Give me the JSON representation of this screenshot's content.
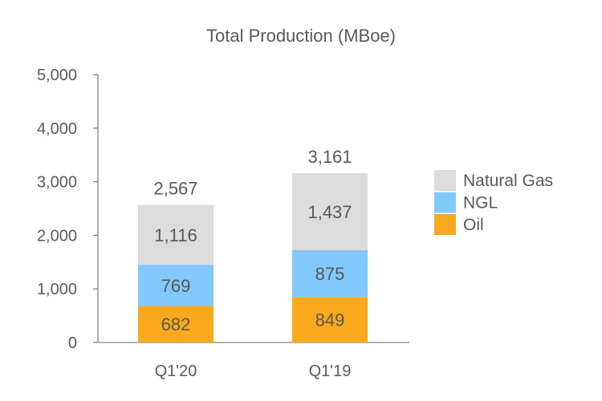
{
  "chart_data": {
    "type": "bar",
    "stacked": true,
    "title": "Total Production (MBoe)",
    "xlabel": "",
    "ylabel": "",
    "ylim": [
      0,
      5000
    ],
    "yticks": [
      "0",
      "1,000",
      "2,000",
      "3,000",
      "4,000",
      "5,000"
    ],
    "ytick_values": [
      0,
      1000,
      2000,
      3000,
      4000,
      5000
    ],
    "categories": [
      "Q1'20",
      "Q1'19"
    ],
    "series": [
      {
        "name": "Oil",
        "values": [
          682,
          849
        ],
        "labels": [
          "682",
          "849"
        ],
        "color": "#F9A91B"
      },
      {
        "name": "NGL",
        "values": [
          769,
          875
        ],
        "labels": [
          "769",
          "875"
        ],
        "color": "#81C9FB"
      },
      {
        "name": "Natural Gas",
        "values": [
          1116,
          1437
        ],
        "labels": [
          "1,116",
          "1,437"
        ],
        "color": "#DCDCDC"
      }
    ],
    "totals": [
      "2,567",
      "3,161"
    ],
    "legend": {
      "placement": "right",
      "order": [
        "Natural Gas",
        "NGL",
        "Oil"
      ]
    },
    "grid": false
  }
}
